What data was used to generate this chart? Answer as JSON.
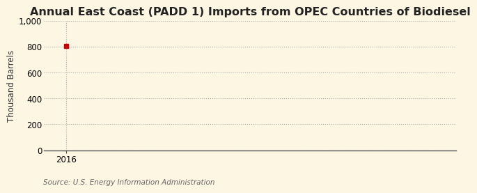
{
  "title": "Annual East Coast (PADD 1) Imports from OPEC Countries of Biodiesel",
  "ylabel": "Thousand Barrels",
  "source": "Source: U.S. Energy Information Administration",
  "outer_bg_color": "#fdf6e3",
  "plot_bg_color": "#fdf6e3",
  "data_x": [
    2016
  ],
  "data_y": [
    805
  ],
  "marker_color": "#cc0000",
  "marker_style": "s",
  "marker_size": 4,
  "ylim": [
    0,
    1000
  ],
  "yticks": [
    0,
    200,
    400,
    600,
    800,
    1000
  ],
  "ytick_labels": [
    "0",
    "200",
    "400",
    "600",
    "800",
    "1,000"
  ],
  "xlim": [
    2015.6,
    2023
  ],
  "xticks": [
    2016
  ],
  "xtick_labels": [
    "2016"
  ],
  "grid_color": "#aaaaaa",
  "grid_linestyle": ":",
  "grid_linewidth": 0.8,
  "title_fontsize": 11.5,
  "axis_label_fontsize": 8.5,
  "tick_fontsize": 8.5,
  "source_fontsize": 7.5,
  "spine_color": "#555555"
}
